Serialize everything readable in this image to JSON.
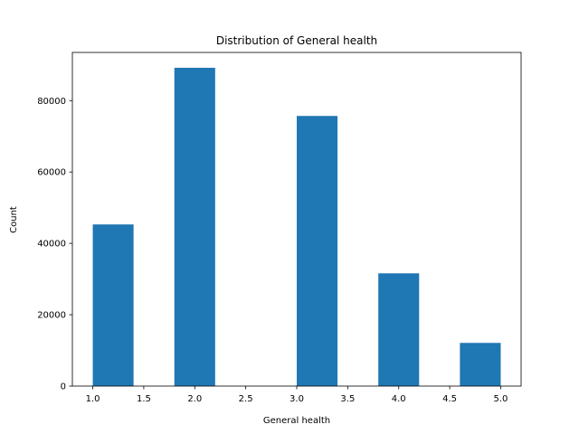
{
  "chart_data": {
    "type": "histogram",
    "title": "Distribution of General health",
    "xlabel": "General health",
    "ylabel": "Count",
    "xlim": [
      0.8,
      5.2
    ],
    "ylim": [
      0,
      93500
    ],
    "bins": [
      {
        "x0": 1.0,
        "x1": 1.4,
        "value": 45300
      },
      {
        "x0": 1.4,
        "x1": 1.8,
        "value": 0
      },
      {
        "x0": 1.8,
        "x1": 2.2,
        "value": 89200
      },
      {
        "x0": 2.2,
        "x1": 2.6,
        "value": 0
      },
      {
        "x0": 2.6,
        "x1": 3.0,
        "value": 0
      },
      {
        "x0": 3.0,
        "x1": 3.4,
        "value": 75700
      },
      {
        "x0": 3.4,
        "x1": 3.8,
        "value": 0
      },
      {
        "x0": 3.8,
        "x1": 4.2,
        "value": 31600
      },
      {
        "x0": 4.2,
        "x1": 4.6,
        "value": 0
      },
      {
        "x0": 4.6,
        "x1": 5.0,
        "value": 12100
      }
    ],
    "xticks": [
      {
        "value": 1.0,
        "label": "1.0"
      },
      {
        "value": 1.5,
        "label": "1.5"
      },
      {
        "value": 2.0,
        "label": "2.0"
      },
      {
        "value": 2.5,
        "label": "2.5"
      },
      {
        "value": 3.0,
        "label": "3.0"
      },
      {
        "value": 3.5,
        "label": "3.5"
      },
      {
        "value": 4.0,
        "label": "4.0"
      },
      {
        "value": 4.5,
        "label": "4.5"
      },
      {
        "value": 5.0,
        "label": "5.0"
      }
    ],
    "yticks": [
      {
        "value": 0,
        "label": "0"
      },
      {
        "value": 20000,
        "label": "20000"
      },
      {
        "value": 40000,
        "label": "40000"
      },
      {
        "value": 60000,
        "label": "60000"
      },
      {
        "value": 80000,
        "label": "80000"
      }
    ],
    "bar_color": "#1f77b4",
    "grid": false,
    "legend": "none"
  }
}
